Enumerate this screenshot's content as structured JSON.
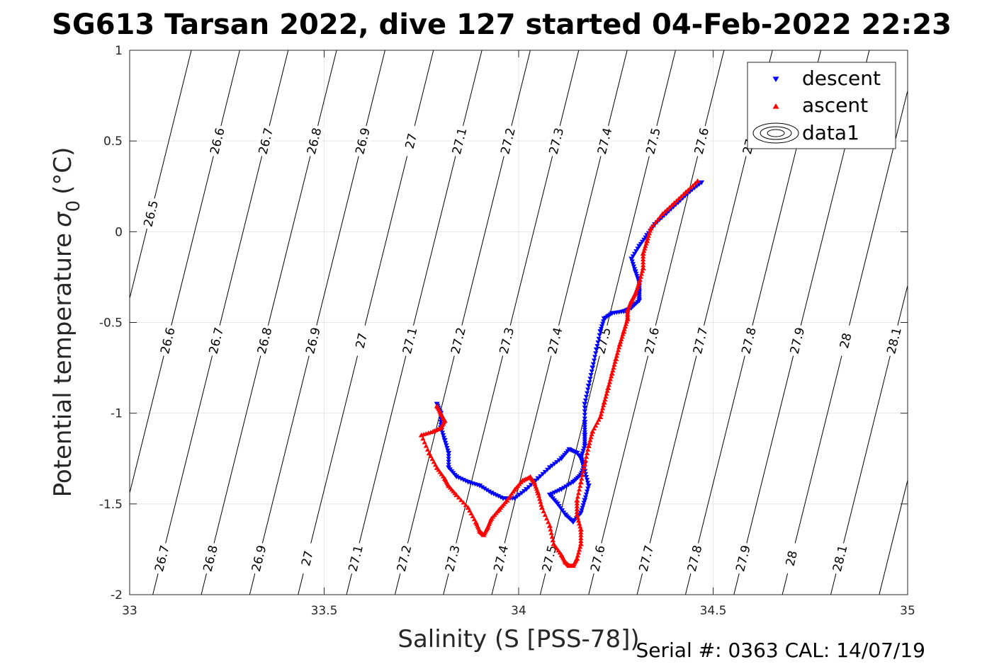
{
  "chart_data": {
    "type": "scatter",
    "title": "SG613 Tarsan 2022, dive 127 started 04-Feb-2022 22:23",
    "xlabel": "Salinity (S [PSS-78])",
    "ylabel": "Potential temperature",
    "ylabel_symbol": "σ",
    "ylabel_subscript": "0",
    "ylabel_unit": "(°C)",
    "xlim": [
      33,
      35
    ],
    "ylim": [
      -2,
      1
    ],
    "xticks": [
      33,
      33.5,
      34,
      34.5,
      35
    ],
    "xtick_labels": [
      "33",
      "33.5",
      "34",
      "34.5",
      "35"
    ],
    "yticks": [
      -2,
      -1.5,
      -1,
      -0.5,
      0,
      0.5,
      1
    ],
    "ytick_labels": [
      "-2",
      "-1.5",
      "-1",
      "-0.5",
      "0",
      "0.5",
      "1"
    ],
    "grid": true,
    "legend_position": "top-right",
    "footer": "Serial #: 0363  CAL: 14/07/19",
    "density_contours": [
      {
        "sigma": 26.5,
        "labels": [
          "26.5"
        ]
      },
      {
        "sigma": 26.6,
        "labels": [
          "26.6",
          "26.6",
          "26.6"
        ]
      },
      {
        "sigma": 26.7,
        "labels": [
          "26.7",
          "26.7",
          "26.7"
        ]
      },
      {
        "sigma": 26.8,
        "labels": [
          "26.8",
          "26.8",
          "26.8"
        ]
      },
      {
        "sigma": 26.9,
        "labels": [
          "26.9",
          "26.9",
          "26.9"
        ]
      },
      {
        "sigma": 27.0,
        "labels": [
          "27",
          "27",
          "27"
        ]
      },
      {
        "sigma": 27.1,
        "labels": [
          "27.1",
          "27.1",
          "27.1"
        ]
      },
      {
        "sigma": 27.2,
        "labels": [
          "27.2",
          "27.2",
          "27.2"
        ]
      },
      {
        "sigma": 27.3,
        "labels": [
          "27.3",
          "27.3",
          "27.3"
        ]
      },
      {
        "sigma": 27.4,
        "labels": [
          "27.4",
          "27.4",
          "27.4"
        ]
      },
      {
        "sigma": 27.5,
        "labels": [
          "27.5",
          "27.5",
          "27.5"
        ]
      },
      {
        "sigma": 27.6,
        "labels": [
          "27.6",
          "27.6",
          "27.6"
        ]
      },
      {
        "sigma": 27.7,
        "labels": [
          "27.7",
          "27.7",
          "27.7"
        ]
      },
      {
        "sigma": 27.8,
        "labels": [
          "27.8",
          "27.8"
        ]
      },
      {
        "sigma": 27.9,
        "labels": [
          "27.9",
          "27.9"
        ]
      },
      {
        "sigma": 28.0,
        "labels": [
          "28",
          "28"
        ]
      },
      {
        "sigma": 28.1,
        "labels": [
          "28.1",
          "28.1"
        ]
      },
      {
        "sigma": 28.2,
        "labels": []
      }
    ],
    "series": [
      {
        "name": "descent",
        "color": "#0000ff",
        "marker": "triangle-down",
        "x": [
          34.47,
          34.44,
          34.41,
          34.38,
          34.35,
          34.33,
          34.31,
          34.29,
          34.3,
          34.31,
          34.31,
          34.31,
          34.29,
          34.27,
          34.24,
          34.22,
          34.21,
          34.2,
          34.19,
          34.18,
          34.17,
          34.17,
          34.17,
          34.17,
          34.16,
          34.17,
          34.18,
          34.17,
          34.16,
          34.14,
          34.12,
          34.1,
          34.08,
          34.11,
          34.14,
          34.16,
          34.17,
          34.15,
          34.13,
          34.11,
          34.08,
          34.05,
          34.02,
          33.99,
          33.96,
          33.93,
          33.9,
          33.87,
          33.84,
          33.82,
          33.82,
          33.81,
          33.8,
          33.8,
          33.79
        ],
        "y": [
          0.27,
          0.22,
          0.16,
          0.1,
          0.04,
          -0.02,
          -0.08,
          -0.15,
          -0.22,
          -0.28,
          -0.33,
          -0.38,
          -0.42,
          -0.44,
          -0.45,
          -0.48,
          -0.55,
          -0.65,
          -0.75,
          -0.85,
          -0.95,
          -1.05,
          -1.12,
          -1.18,
          -1.25,
          -1.32,
          -1.4,
          -1.48,
          -1.55,
          -1.6,
          -1.56,
          -1.5,
          -1.45,
          -1.42,
          -1.38,
          -1.34,
          -1.28,
          -1.22,
          -1.2,
          -1.25,
          -1.3,
          -1.36,
          -1.42,
          -1.47,
          -1.47,
          -1.44,
          -1.4,
          -1.38,
          -1.35,
          -1.3,
          -1.22,
          -1.15,
          -1.08,
          -1.0,
          -0.95
        ]
      },
      {
        "name": "ascent",
        "color": "#ff0000",
        "marker": "triangle-up",
        "x": [
          34.46,
          34.43,
          34.4,
          34.37,
          34.34,
          34.33,
          34.32,
          34.32,
          34.31,
          34.3,
          34.29,
          34.28,
          34.28,
          34.27,
          34.26,
          34.25,
          34.24,
          34.23,
          34.22,
          34.21,
          34.19,
          34.18,
          34.17,
          34.16,
          34.15,
          34.15,
          34.16,
          34.16,
          34.15,
          34.14,
          34.13,
          34.12,
          34.11,
          34.09,
          34.08,
          34.06,
          34.05,
          34.04,
          34.03,
          34.01,
          33.99,
          33.97,
          33.95,
          33.93,
          33.92,
          33.91,
          33.9,
          33.89,
          33.87,
          33.84,
          33.82,
          33.81,
          33.79,
          33.77,
          33.75,
          33.78,
          33.8,
          33.81,
          33.8,
          33.79
        ],
        "y": [
          0.28,
          0.22,
          0.16,
          0.1,
          0.02,
          -0.05,
          -0.12,
          -0.2,
          -0.28,
          -0.34,
          -0.38,
          -0.43,
          -0.48,
          -0.55,
          -0.62,
          -0.7,
          -0.78,
          -0.86,
          -0.94,
          -1.02,
          -1.1,
          -1.18,
          -1.28,
          -1.38,
          -1.48,
          -1.56,
          -1.64,
          -1.72,
          -1.8,
          -1.84,
          -1.84,
          -1.82,
          -1.78,
          -1.72,
          -1.62,
          -1.52,
          -1.44,
          -1.38,
          -1.35,
          -1.37,
          -1.42,
          -1.48,
          -1.53,
          -1.58,
          -1.63,
          -1.67,
          -1.65,
          -1.6,
          -1.52,
          -1.45,
          -1.4,
          -1.36,
          -1.3,
          -1.22,
          -1.12,
          -1.1,
          -1.08,
          -1.04,
          -1.0,
          -0.96
        ]
      },
      {
        "name": "data1",
        "color": "#000000",
        "marker": "contour-legend"
      }
    ]
  }
}
